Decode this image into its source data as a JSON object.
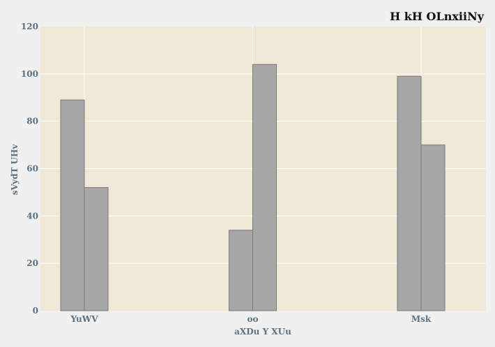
{
  "chart_data": {
    "type": "bar",
    "title": "H kH OLnxiiNy",
    "xlabel": "aXDu Y XUu",
    "ylabel": "sVydT UHv",
    "categories": [
      "YuWV",
      "oo",
      "Msk"
    ],
    "series": [
      {
        "values": [
          89,
          34,
          99
        ]
      },
      {
        "values": [
          52,
          104,
          70
        ]
      }
    ],
    "ylim": [
      0,
      120
    ],
    "yticks": [
      0,
      20,
      40,
      60,
      80,
      100,
      120
    ],
    "grid": true,
    "legend": "none",
    "colors": {
      "plot_background": "#efe8d6",
      "page_background": "#f0f0f0",
      "bar_fill": "#a8a7a7",
      "bar_stroke": "#7a7a7a",
      "grid": "#ffffff"
    }
  }
}
